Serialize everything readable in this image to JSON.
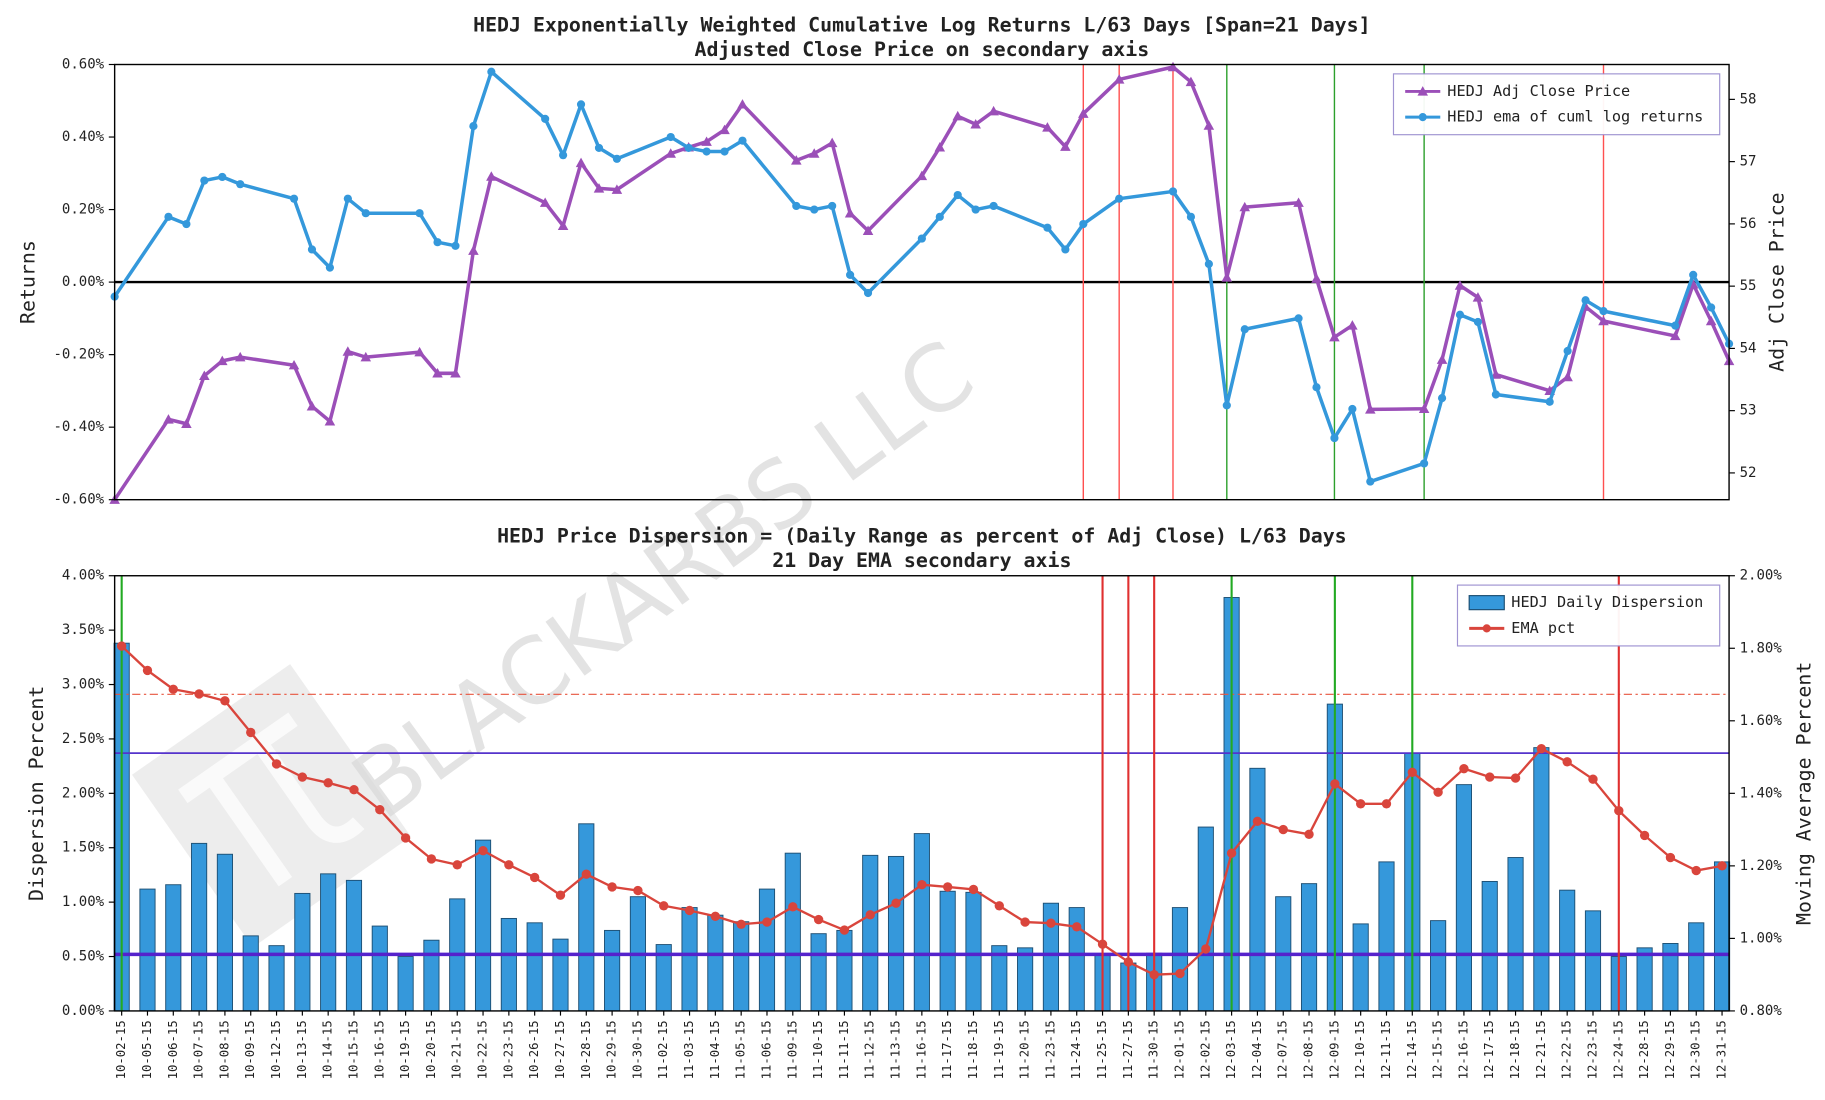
{
  "watermark": "BLACKARBS LLC",
  "chart_data": [
    {
      "type": "line",
      "title": "HEDJ Exponentially Weighted Cumulative Log Returns L/63 Days [Span=21 Days]",
      "subtitle": "Adjusted Close Price on secondary axis",
      "y_label": "Returns",
      "y2_label": "Adj Close Price",
      "x": [
        "10-02-15",
        "10-05-15",
        "10-06-15",
        "10-07-15",
        "10-08-15",
        "10-09-15",
        "10-12-15",
        "10-13-15",
        "10-14-15",
        "10-15-15",
        "10-16-15",
        "10-19-15",
        "10-20-15",
        "10-21-15",
        "10-22-15",
        "10-23-15",
        "10-26-15",
        "10-27-15",
        "10-28-15",
        "10-29-15",
        "10-30-15",
        "11-02-15",
        "11-03-15",
        "11-04-15",
        "11-05-15",
        "11-06-15",
        "11-09-15",
        "11-10-15",
        "11-11-15",
        "11-12-15",
        "11-13-15",
        "11-16-15",
        "11-17-15",
        "11-18-15",
        "11-19-15",
        "11-20-15",
        "11-23-15",
        "11-24-15",
        "11-25-15",
        "11-27-15",
        "11-30-15",
        "12-01-15",
        "12-02-15",
        "12-03-15",
        "12-04-15",
        "12-07-15",
        "12-08-15",
        "12-09-15",
        "12-10-15",
        "12-11-15",
        "12-14-15",
        "12-15-15",
        "12-16-15",
        "12-17-15",
        "12-18-15",
        "12-21-15",
        "12-22-15",
        "12-23-15",
        "12-24-15",
        "12-28-15",
        "12-29-15",
        "12-30-15",
        "12-31-15"
      ],
      "series": [
        {
          "name": "HEDJ Adj Close Price",
          "color": "#9b4fb8",
          "marker": "triangle",
          "axis": "y2",
          "values": [
            51.57,
            52.86,
            52.79,
            53.56,
            53.8,
            53.86,
            53.73,
            53.07,
            52.83,
            53.95,
            53.86,
            53.94,
            53.6,
            53.6,
            55.57,
            56.76,
            56.34,
            55.97,
            56.98,
            56.57,
            56.55,
            57.13,
            57.23,
            57.32,
            57.51,
            57.92,
            57.02,
            57.13,
            57.3,
            56.17,
            55.89,
            56.77,
            57.23,
            57.73,
            57.6,
            57.81,
            57.55,
            57.24,
            57.77,
            58.32,
            58.52,
            58.28,
            57.58,
            55.14,
            56.27,
            56.34,
            55.12,
            54.18,
            54.37,
            53.02,
            53.03,
            53.82,
            55.01,
            54.82,
            53.58,
            53.32,
            53.54,
            54.67,
            54.44,
            54.2,
            55.03,
            54.44,
            53.8
          ]
        },
        {
          "name": "HEDJ ema of cuml log returns",
          "color": "#3498db",
          "marker": "circle",
          "values": [
            -0.04,
            0.18,
            0.16,
            0.28,
            0.29,
            0.27,
            0.23,
            0.09,
            0.04,
            0.23,
            0.19,
            0.19,
            0.11,
            0.1,
            0.43,
            0.58,
            0.45,
            0.35,
            0.49,
            0.37,
            0.34,
            0.4,
            0.37,
            0.36,
            0.36,
            0.39,
            0.21,
            0.2,
            0.21,
            0.02,
            -0.03,
            0.12,
            0.18,
            0.24,
            0.2,
            0.21,
            0.15,
            0.09,
            0.16,
            0.23,
            0.25,
            0.18,
            0.05,
            -0.34,
            -0.13,
            -0.1,
            -0.29,
            -0.43,
            -0.35,
            -0.55,
            -0.5,
            -0.32,
            -0.09,
            -0.11,
            -0.31,
            -0.33,
            -0.19,
            -0.05,
            -0.08,
            -0.12,
            0.02,
            -0.07,
            -0.17
          ]
        }
      ],
      "ylim": [
        -0.6,
        0.6
      ],
      "yticks": [
        {
          "value": -0.6,
          "label": "-0.60%"
        },
        {
          "value": -0.4,
          "label": "-0.40%"
        },
        {
          "value": -0.2,
          "label": "-0.20%"
        },
        {
          "value": 0,
          "label": "0.00%"
        },
        {
          "value": 0.2,
          "label": "0.20%"
        },
        {
          "value": 0.4,
          "label": "0.40%"
        },
        {
          "value": 0.6,
          "label": "0.60%"
        }
      ],
      "y2lim": [
        51.57,
        58.56
      ],
      "y2ticks": [
        52,
        53,
        54,
        55,
        56,
        57,
        58
      ],
      "hlines": [
        {
          "value": 0,
          "color": "#000000",
          "linewidth": 2
        }
      ],
      "vlines": [
        {
          "at": "11-25-15",
          "color": "#ff5050"
        },
        {
          "at": "11-27-15",
          "color": "#ff5050"
        },
        {
          "at": "11-30-15",
          "color": "#ff5050"
        },
        {
          "at": "12-24-15",
          "color": "#ff5050"
        },
        {
          "at": "12-03-15",
          "color": "#2ca02c"
        },
        {
          "at": "12-09-15",
          "color": "#2ca02c"
        },
        {
          "at": "12-14-15",
          "color": "#2ca02c"
        }
      ],
      "legend": "upper right"
    },
    {
      "type": "bar",
      "title": "HEDJ Price Dispersion = (Daily Range as percent of Adj Close) L/63 Days",
      "subtitle": "21 Day EMA secondary axis",
      "y_label": "Dispersion Percent",
      "y2_label": "Moving Average Percent",
      "categories": [
        "10-02-15",
        "10-05-15",
        "10-06-15",
        "10-07-15",
        "10-08-15",
        "10-09-15",
        "10-12-15",
        "10-13-15",
        "10-14-15",
        "10-15-15",
        "10-16-15",
        "10-19-15",
        "10-20-15",
        "10-21-15",
        "10-22-15",
        "10-23-15",
        "10-26-15",
        "10-27-15",
        "10-28-15",
        "10-29-15",
        "10-30-15",
        "11-02-15",
        "11-03-15",
        "11-04-15",
        "11-05-15",
        "11-06-15",
        "11-09-15",
        "11-10-15",
        "11-11-15",
        "11-12-15",
        "11-13-15",
        "11-16-15",
        "11-17-15",
        "11-18-15",
        "11-19-15",
        "11-20-15",
        "11-23-15",
        "11-24-15",
        "11-25-15",
        "11-27-15",
        "11-30-15",
        "12-01-15",
        "12-02-15",
        "12-03-15",
        "12-04-15",
        "12-07-15",
        "12-08-15",
        "12-09-15",
        "12-10-15",
        "12-11-15",
        "12-14-15",
        "12-15-15",
        "12-16-15",
        "12-17-15",
        "12-18-15",
        "12-21-15",
        "12-22-15",
        "12-23-15",
        "12-24-15",
        "12-28-15",
        "12-29-15",
        "12-30-15",
        "12-31-15"
      ],
      "series": [
        {
          "name": "HEDJ Daily Dispersion",
          "type": "bar",
          "color": "#3598db",
          "values": [
            3.38,
            1.12,
            1.16,
            1.54,
            1.44,
            0.69,
            0.6,
            1.08,
            1.26,
            1.2,
            0.78,
            0.5,
            0.65,
            1.03,
            1.57,
            0.85,
            0.81,
            0.66,
            1.72,
            0.74,
            1.05,
            0.61,
            0.95,
            0.88,
            0.82,
            1.12,
            1.45,
            0.71,
            0.74,
            1.43,
            1.42,
            1.63,
            1.1,
            1.09,
            0.6,
            0.58,
            0.99,
            0.95,
            0.52,
            0.44,
            0.53,
            0.95,
            1.69,
            3.8,
            2.23,
            1.05,
            1.17,
            2.82,
            0.8,
            1.37,
            2.37,
            0.83,
            2.08,
            1.19,
            1.41,
            2.42,
            1.11,
            0.92,
            0.5,
            0.58,
            0.62,
            0.81,
            1.37
          ]
        },
        {
          "name": "EMA pct",
          "type": "line",
          "marker": "circle",
          "axis": "y2",
          "color": "#d9453c",
          "values": [
            1.806,
            1.739,
            1.687,
            1.674,
            1.655,
            1.568,
            1.481,
            1.445,
            1.429,
            1.41,
            1.355,
            1.277,
            1.219,
            1.203,
            1.242,
            1.203,
            1.168,
            1.119,
            1.177,
            1.142,
            1.132,
            1.09,
            1.077,
            1.061,
            1.039,
            1.045,
            1.087,
            1.052,
            1.023,
            1.065,
            1.097,
            1.148,
            1.142,
            1.135,
            1.09,
            1.045,
            1.042,
            1.032,
            0.984,
            0.935,
            0.9,
            0.903,
            0.971,
            1.235,
            1.323,
            1.3,
            1.287,
            1.426,
            1.371,
            1.371,
            1.458,
            1.403,
            1.468,
            1.445,
            1.442,
            1.523,
            1.487,
            1.439,
            1.352,
            1.284,
            1.223,
            1.187,
            1.2
          ]
        }
      ],
      "ylim": [
        0,
        4
      ],
      "yticks": [
        {
          "value": 0,
          "label": "0.00%"
        },
        {
          "value": 0.5,
          "label": "0.50%"
        },
        {
          "value": 1,
          "label": "1.00%"
        },
        {
          "value": 1.5,
          "label": "1.50%"
        },
        {
          "value": 2,
          "label": "2.00%"
        },
        {
          "value": 2.5,
          "label": "2.50%"
        },
        {
          "value": 3,
          "label": "3.00%"
        },
        {
          "value": 3.5,
          "label": "3.50%"
        },
        {
          "value": 4,
          "label": "4.00%"
        }
      ],
      "y2lim": [
        0.8,
        2.0
      ],
      "y2ticks": [
        {
          "value": 0.8,
          "label": "0.80%"
        },
        {
          "value": 1.0,
          "label": "1.00%"
        },
        {
          "value": 1.2,
          "label": "1.20%"
        },
        {
          "value": 1.4,
          "label": "1.40%"
        },
        {
          "value": 1.6,
          "label": "1.60%"
        },
        {
          "value": 1.8,
          "label": "1.80%"
        },
        {
          "value": 2.0,
          "label": "2.00%"
        }
      ],
      "hlines": [
        {
          "value": 2.91,
          "color": "#e8553f",
          "style": "dashdot",
          "linewidth": 1
        },
        {
          "value": 2.37,
          "color": "#5533cc",
          "linewidth": 1.5
        },
        {
          "value": 0.52,
          "color": "#5522cc",
          "linewidth": 3
        }
      ],
      "vlines": [
        {
          "at": "11-25-15",
          "color": "#e03030"
        },
        {
          "at": "11-27-15",
          "color": "#e03030"
        },
        {
          "at": "11-30-15",
          "color": "#e03030"
        },
        {
          "at": "12-24-15",
          "color": "#e03030"
        },
        {
          "at": "10-02-15",
          "color": "#22aa22"
        },
        {
          "at": "12-03-15",
          "color": "#22aa22"
        },
        {
          "at": "12-09-15",
          "color": "#22aa22"
        },
        {
          "at": "12-14-15",
          "color": "#22aa22"
        }
      ],
      "legend": "upper right"
    }
  ]
}
